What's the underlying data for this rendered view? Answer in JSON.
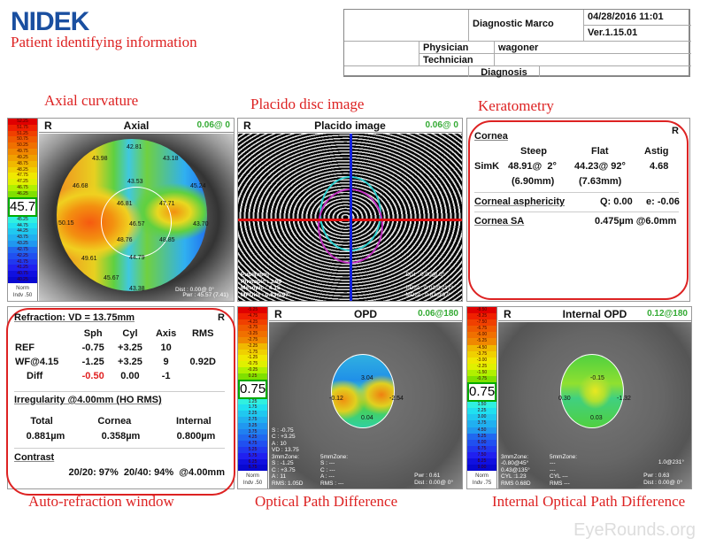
{
  "logo": "NIDEK",
  "annotations": {
    "patient": "Patient identifying information",
    "axial": "Axial curvature",
    "placido": "Placido disc image",
    "kerato": "Keratometry",
    "autoref": "Auto-refraction window",
    "opd": "Optical Path Difference",
    "iopd": "Internal Optical Path Difference"
  },
  "header": {
    "name": "Diagnostic Marco",
    "datetime": "04/28/2016 11:01",
    "version": "Ver.1.15.01",
    "physician_label": "Physician",
    "physician": "wagoner",
    "technician_label": "Technician",
    "diagnosis_label": "Diagnosis"
  },
  "axial": {
    "eye": "R",
    "title": "Axial",
    "value": "0.06@ 0",
    "scale_top": [
      "52.25",
      "51.75",
      "51.25",
      "50.75",
      "50.25",
      "49.75",
      "49.25",
      "48.75",
      "48.25",
      "47.75",
      "47.25",
      "46.75",
      "46.25"
    ],
    "scale_center": "45.75",
    "scale_bottom": [
      "45.25",
      "44.75",
      "44.25",
      "43.75",
      "43.25",
      "42.75",
      "42.25",
      "41.75",
      "41.25",
      "40.75",
      "40.25"
    ],
    "norm": "Norm",
    "indv": "Indv .50",
    "labels": [
      "42.81",
      "43.98",
      "43.18",
      "46.68",
      "45.24",
      "43.53",
      "46.81",
      "47.71",
      "50.15",
      "46.57",
      "43.70",
      "48.76",
      "48.85",
      "49.61",
      "44.79",
      "45.67",
      "43.38"
    ],
    "pwr": "Pwr : 45.57 (7.41)",
    "dist": "Dist : 0.00@ 0°"
  },
  "placido": {
    "eye": "R",
    "title": "Placido image",
    "value": "0.06@ 0",
    "pupil": "Pupil[mm]\nPhotopic : 3.99\nMesopic : 4.15\nMPDist : 0.83@97°",
    "dist": "Dist : 0.00@ 0°\n\nPDist : 0.01@217°\nMDist : 0.83@97°"
  },
  "keratometry": {
    "eye": "R",
    "cornea": "Cornea",
    "steep": "Steep",
    "flat": "Flat",
    "astig": "Astig",
    "simk": "SimK",
    "steep_val": "48.91@  2°",
    "flat_val": "44.23@ 92°",
    "astig_val": "4.68",
    "steep_mm": "(6.90mm)",
    "flat_mm": "(7.63mm)",
    "asph_label": "Corneal asphericity",
    "q": "Q: 0.00",
    "e": "e: -0.06",
    "sa_label": "Cornea SA",
    "sa": "0.475µm @6.0mm"
  },
  "refraction": {
    "title": "Refraction: VD = 13.75mm",
    "eye": "R",
    "cols": [
      "",
      "Sph",
      "Cyl",
      "Axis",
      "RMS"
    ],
    "rows": [
      [
        "REF",
        "-0.75",
        "+3.25",
        "10",
        ""
      ],
      [
        "WF@4.15",
        "-1.25",
        "+3.25",
        "9",
        "0.92D"
      ],
      [
        "Diff",
        "-0.50",
        "0.00",
        "-1",
        ""
      ]
    ],
    "irregularity": "Irregularity @4.00mm (HO RMS)",
    "irr_cols": [
      "Total",
      "Cornea",
      "Internal"
    ],
    "irr_vals": [
      "0.881µm",
      "0.358µm",
      "0.800µm"
    ],
    "contrast": "Contrast",
    "contrast_val": "20/20: 97%  20/40: 94%  @4.00mm",
    "diff_color": "#e02020"
  },
  "opd": {
    "eye": "R",
    "title": "OPD",
    "value": "0.06@180",
    "scale_top": [
      "-5.25",
      "-4.75",
      "-4.25",
      "-3.75",
      "-3.25",
      "-2.75",
      "-2.25",
      "-1.75",
      "-1.25",
      "-0.75",
      "-0.25",
      "0.25"
    ],
    "scale_center": "0.75",
    "scale_bottom": [
      "1.25",
      "1.75",
      "2.25",
      "2.75",
      "3.25",
      "3.75",
      "4.25",
      "4.75",
      "5.25",
      "5.75",
      "6.25",
      "6.75"
    ],
    "norm": "Norm",
    "indv": "Indv .50",
    "labels": [
      "3.04",
      "-0.12",
      "-2.54",
      "0.04"
    ],
    "left_info": "S : -0.75\nC : +3.25\nA : 10\nVD : 13.75\n3mmZone:\nS : -1.25\nC : +3.75\nA : 11\nRMS: 1.05D",
    "zone5": "5mmZone:\nS : ---\nC : ---\nA : ---\nRMS : ---",
    "pwr": "Pwr : 0.61\nDist : 0.00@ 0°"
  },
  "iopd": {
    "eye": "R",
    "title": "Internal OPD",
    "value": "0.12@180",
    "scale_top": [
      "-8.50",
      "-8.25",
      "-7.50",
      "-6.75",
      "-6.00",
      "-5.25",
      "-4.50",
      "-3.75",
      "-3.00",
      "-2.25",
      "-1.50",
      "-0.75"
    ],
    "scale_center": "0.75",
    "scale_bottom": [
      "1.50",
      "2.25",
      "3.00",
      "3.75",
      "4.50",
      "5.25",
      "6.00",
      "6.75",
      "7.50",
      "8.25",
      "9.00"
    ],
    "norm": "Norm",
    "indv": "Indv .75",
    "labels": [
      "-0.15",
      "0.30",
      "-1.32",
      "0.03"
    ],
    "left_info": "3mmZone:\n-0.80@45°\n0.43@135°\nCYL :1.23\nRMS 0.68D",
    "zone5": "5mmZone:\n---\n---\nCYL ---\nRMS ---",
    "angle": "1.0@231°",
    "pwr": "Pwr : 0.63\nDist : 0.00@ 0°"
  },
  "watermark": "EyeRounds.org",
  "colors": {
    "annotation": "#dd2222",
    "logo": "#1a4fa0",
    "value_green": "#33aa33"
  }
}
